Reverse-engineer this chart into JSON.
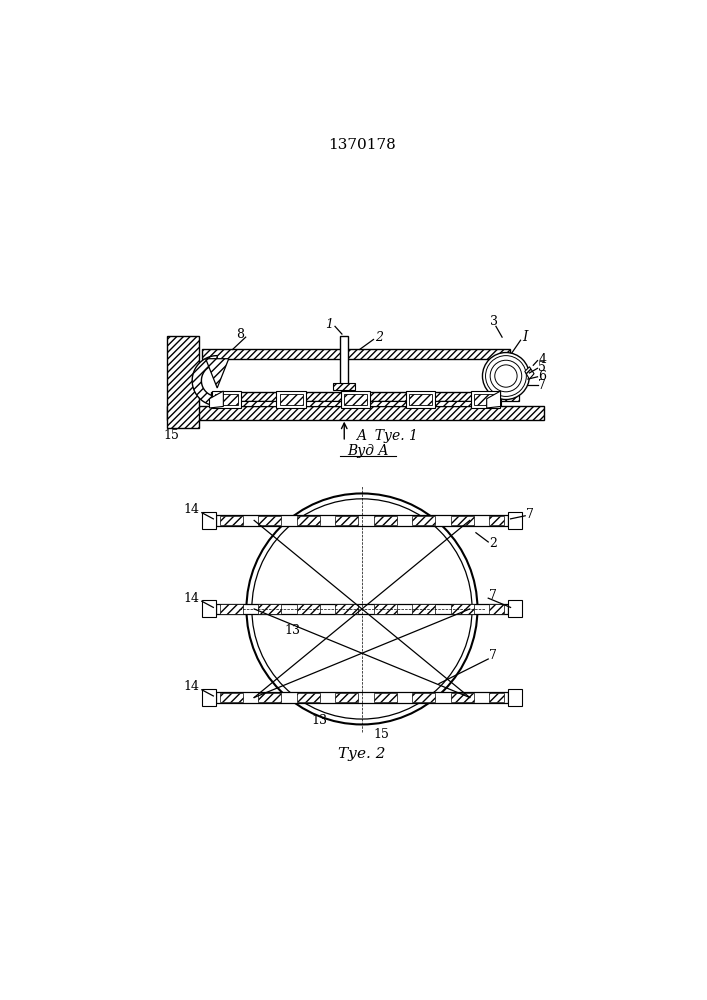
{
  "title": "1370178",
  "fig1_label": "Τуе. 1",
  "fig2_label": "Τуе. 2",
  "vid_label": "Вуд A",
  "bg_color": "#ffffff",
  "line_color": "#000000"
}
